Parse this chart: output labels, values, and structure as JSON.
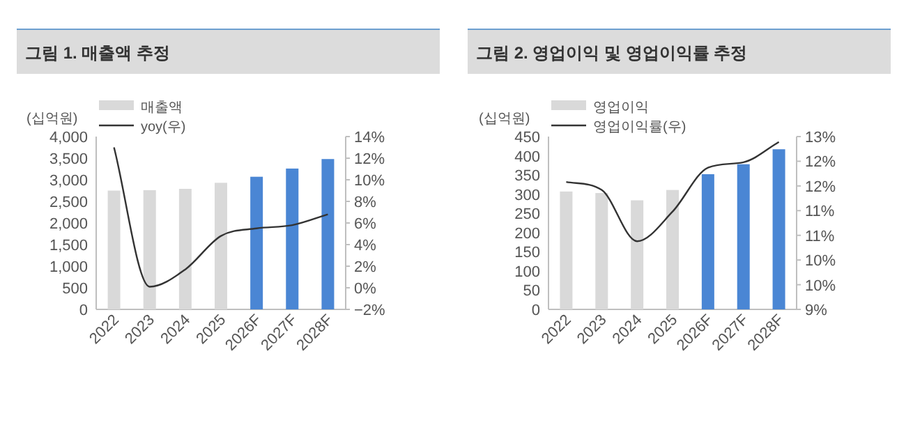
{
  "chart_data": [
    {
      "type": "bar",
      "title": "그림 1.   매출액 추정",
      "ylabel": "(십억원)",
      "categories": [
        "2022",
        "2023",
        "2024",
        "2025",
        "2026F",
        "2027F",
        "2028F"
      ],
      "series": [
        {
          "name": "매출액",
          "colors": [
            "#d9d9d9",
            "#d9d9d9",
            "#d9d9d9",
            "#d9d9d9",
            "#4a86d4",
            "#4a86d4",
            "#4a86d4"
          ],
          "values": [
            2750,
            2760,
            2790,
            2930,
            3070,
            3260,
            3480
          ]
        },
        {
          "name": "yoy(우)",
          "type": "line",
          "axis": "y2",
          "color": "#333333",
          "values": [
            13.0,
            0.1,
            1.7,
            4.8,
            5.5,
            5.8,
            6.8
          ]
        }
      ],
      "ylim": [
        0,
        4000
      ],
      "yticks": [
        0,
        {
          "value": 500,
          "label": "500"
        },
        {
          "value": 1000,
          "label": "1,000"
        },
        {
          "value": 1500,
          "label": "1,500"
        },
        {
          "value": 2000,
          "label": "2,000"
        },
        {
          "value": 2500,
          "label": "2,500"
        },
        {
          "value": 3000,
          "label": "3,000"
        },
        {
          "value": 3500,
          "label": "3,500"
        },
        {
          "value": 4000,
          "label": "4,000"
        }
      ],
      "y2lim": [
        -2,
        14
      ],
      "y2ticks": [
        {
          "value": -2,
          "label": "−2%"
        },
        {
          "value": 0,
          "label": "0%"
        },
        {
          "value": 2,
          "label": "2%"
        },
        {
          "value": 4,
          "label": "4%"
        },
        {
          "value": 6,
          "label": "6%"
        },
        {
          "value": 8,
          "label": "8%"
        },
        {
          "value": 10,
          "label": "10%"
        },
        {
          "value": 12,
          "label": "12%"
        },
        {
          "value": 14,
          "label": "14%"
        }
      ],
      "legend": "top left",
      "grid": false
    },
    {
      "type": "bar",
      "title": "그림 2.   영업이익 및 영업이익률 추정",
      "ylabel": "(십억원)",
      "categories": [
        "2022",
        "2023",
        "2024",
        "2025",
        "2026F",
        "2027F",
        "2028F"
      ],
      "series": [
        {
          "name": "영업이익",
          "colors": [
            "#d9d9d9",
            "#d9d9d9",
            "#d9d9d9",
            "#d9d9d9",
            "#4a86d4",
            "#4a86d4",
            "#4a86d4"
          ],
          "values": [
            307,
            303,
            284,
            311,
            352,
            378,
            417
          ]
        },
        {
          "name": "영업이익률(우)",
          "type": "line",
          "axis": "y2",
          "color": "#333333",
          "values": [
            11.58,
            11.42,
            10.38,
            10.98,
            11.87,
            11.98,
            12.39
          ]
        }
      ],
      "ylim": [
        0,
        450
      ],
      "yticks": [
        0,
        50,
        100,
        150,
        200,
        250,
        300,
        350,
        400,
        450
      ],
      "y2lim": [
        9,
        12.5
      ],
      "y2ticks": [
        {
          "value": 9,
          "label": "9%"
        },
        {
          "value": 9.5,
          "label": "10%"
        },
        {
          "value": 10,
          "label": "10%"
        },
        {
          "value": 10.5,
          "label": "11%"
        },
        {
          "value": 11,
          "label": "11%"
        },
        {
          "value": 11.5,
          "label": "12%"
        },
        {
          "value": 12,
          "label": "12%"
        },
        {
          "value": 12.5,
          "label": "13%"
        }
      ],
      "legend": "top left",
      "grid": false
    }
  ]
}
